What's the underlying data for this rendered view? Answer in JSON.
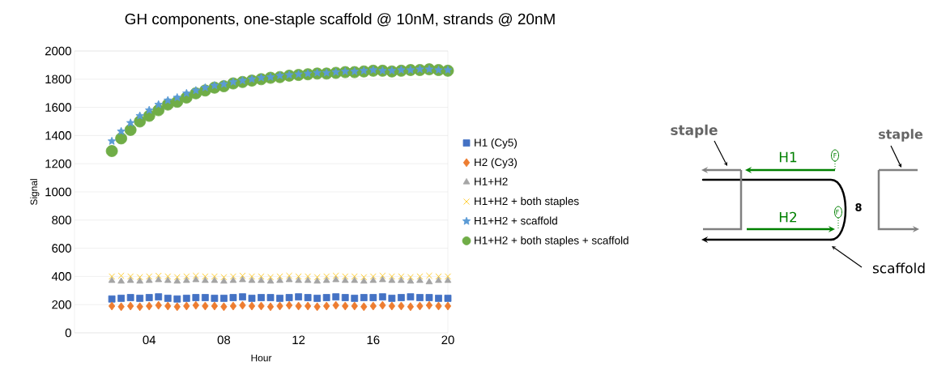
{
  "chart_data": {
    "type": "scatter",
    "title": "GH components, one-staple scaffold @ 10nM, strands @ 20nM",
    "xlabel": "Hour",
    "ylabel": "Signal",
    "x": [
      2,
      2.5,
      3,
      3.5,
      4,
      4.5,
      5,
      5.5,
      6,
      6.5,
      7,
      7.5,
      8,
      8.5,
      9,
      9.5,
      10,
      10.5,
      11,
      11.5,
      12,
      12.5,
      13,
      13.5,
      14,
      14.5,
      15,
      15.5,
      16,
      16.5,
      17,
      17.5,
      18,
      18.5,
      19,
      19.5,
      20
    ],
    "xlim": [
      0,
      20
    ],
    "xticks": [
      {
        "value": 4,
        "label": "04"
      },
      {
        "value": 8,
        "label": "08"
      },
      {
        "value": 12,
        "label": "12"
      },
      {
        "value": 16,
        "label": "16"
      },
      {
        "value": 20,
        "label": "20"
      }
    ],
    "ylim": [
      0,
      2000
    ],
    "yticks": [
      0,
      200,
      400,
      600,
      800,
      1000,
      1200,
      1400,
      1600,
      1800,
      2000
    ],
    "grid": "y",
    "legend": "right",
    "series": [
      {
        "name": "H1 (Cy5)",
        "color": "#4472c4",
        "marker": "square",
        "values": [
          240,
          245,
          250,
          245,
          250,
          255,
          245,
          240,
          245,
          250,
          250,
          245,
          245,
          250,
          255,
          245,
          250,
          250,
          245,
          250,
          255,
          250,
          245,
          250,
          255,
          250,
          245,
          250,
          250,
          255,
          245,
          250,
          255,
          250,
          250,
          245,
          245
        ]
      },
      {
        "name": "H2 (Cy3)",
        "color": "#ed7d31",
        "marker": "diamond",
        "values": [
          190,
          185,
          190,
          185,
          190,
          195,
          190,
          185,
          190,
          195,
          190,
          190,
          185,
          190,
          195,
          190,
          190,
          185,
          190,
          195,
          190,
          190,
          185,
          190,
          195,
          190,
          190,
          185,
          190,
          195,
          190,
          190,
          185,
          190,
          195,
          190,
          190
        ]
      },
      {
        "name": "H1+H2",
        "color": "#a5a5a5",
        "marker": "triangle",
        "values": [
          370,
          365,
          370,
          365,
          370,
          375,
          370,
          365,
          370,
          375,
          370,
          370,
          365,
          370,
          375,
          370,
          370,
          365,
          370,
          375,
          370,
          370,
          365,
          370,
          375,
          370,
          370,
          365,
          370,
          375,
          370,
          370,
          365,
          370,
          360,
          370,
          370
        ]
      },
      {
        "name": "H1+H2 + both staples",
        "color": "#ffc000",
        "marker": "cross",
        "values": [
          400,
          405,
          400,
          395,
          400,
          405,
          400,
          395,
          400,
          405,
          400,
          400,
          395,
          400,
          405,
          400,
          400,
          395,
          400,
          405,
          400,
          400,
          395,
          400,
          405,
          400,
          400,
          395,
          400,
          405,
          400,
          400,
          395,
          400,
          405,
          400,
          400
        ]
      },
      {
        "name": "H1+H2 + scaffold",
        "color": "#5b9bd5",
        "marker": "star",
        "values": [
          1360,
          1430,
          1490,
          1540,
          1580,
          1620,
          1650,
          1670,
          1700,
          1720,
          1740,
          1755,
          1765,
          1780,
          1790,
          1800,
          1810,
          1815,
          1825,
          1830,
          1835,
          1840,
          1845,
          1845,
          1850,
          1855,
          1855,
          1860,
          1865,
          1860,
          1860,
          1865,
          1865,
          1870,
          1870,
          1865,
          1865
        ]
      },
      {
        "name": "H1+H2 + both staples + scaffold",
        "color": "#70ad47",
        "marker": "circle",
        "values": [
          1290,
          1380,
          1440,
          1500,
          1540,
          1580,
          1620,
          1640,
          1670,
          1700,
          1720,
          1740,
          1750,
          1770,
          1780,
          1790,
          1800,
          1810,
          1815,
          1825,
          1830,
          1835,
          1840,
          1840,
          1845,
          1850,
          1850,
          1855,
          1860,
          1860,
          1855,
          1860,
          1865,
          1865,
          1870,
          1865,
          1860
        ]
      }
    ],
    "annotations": [
      "staple",
      "staple",
      "H1",
      "H2",
      "F",
      "F",
      "8",
      "scaffold"
    ]
  }
}
